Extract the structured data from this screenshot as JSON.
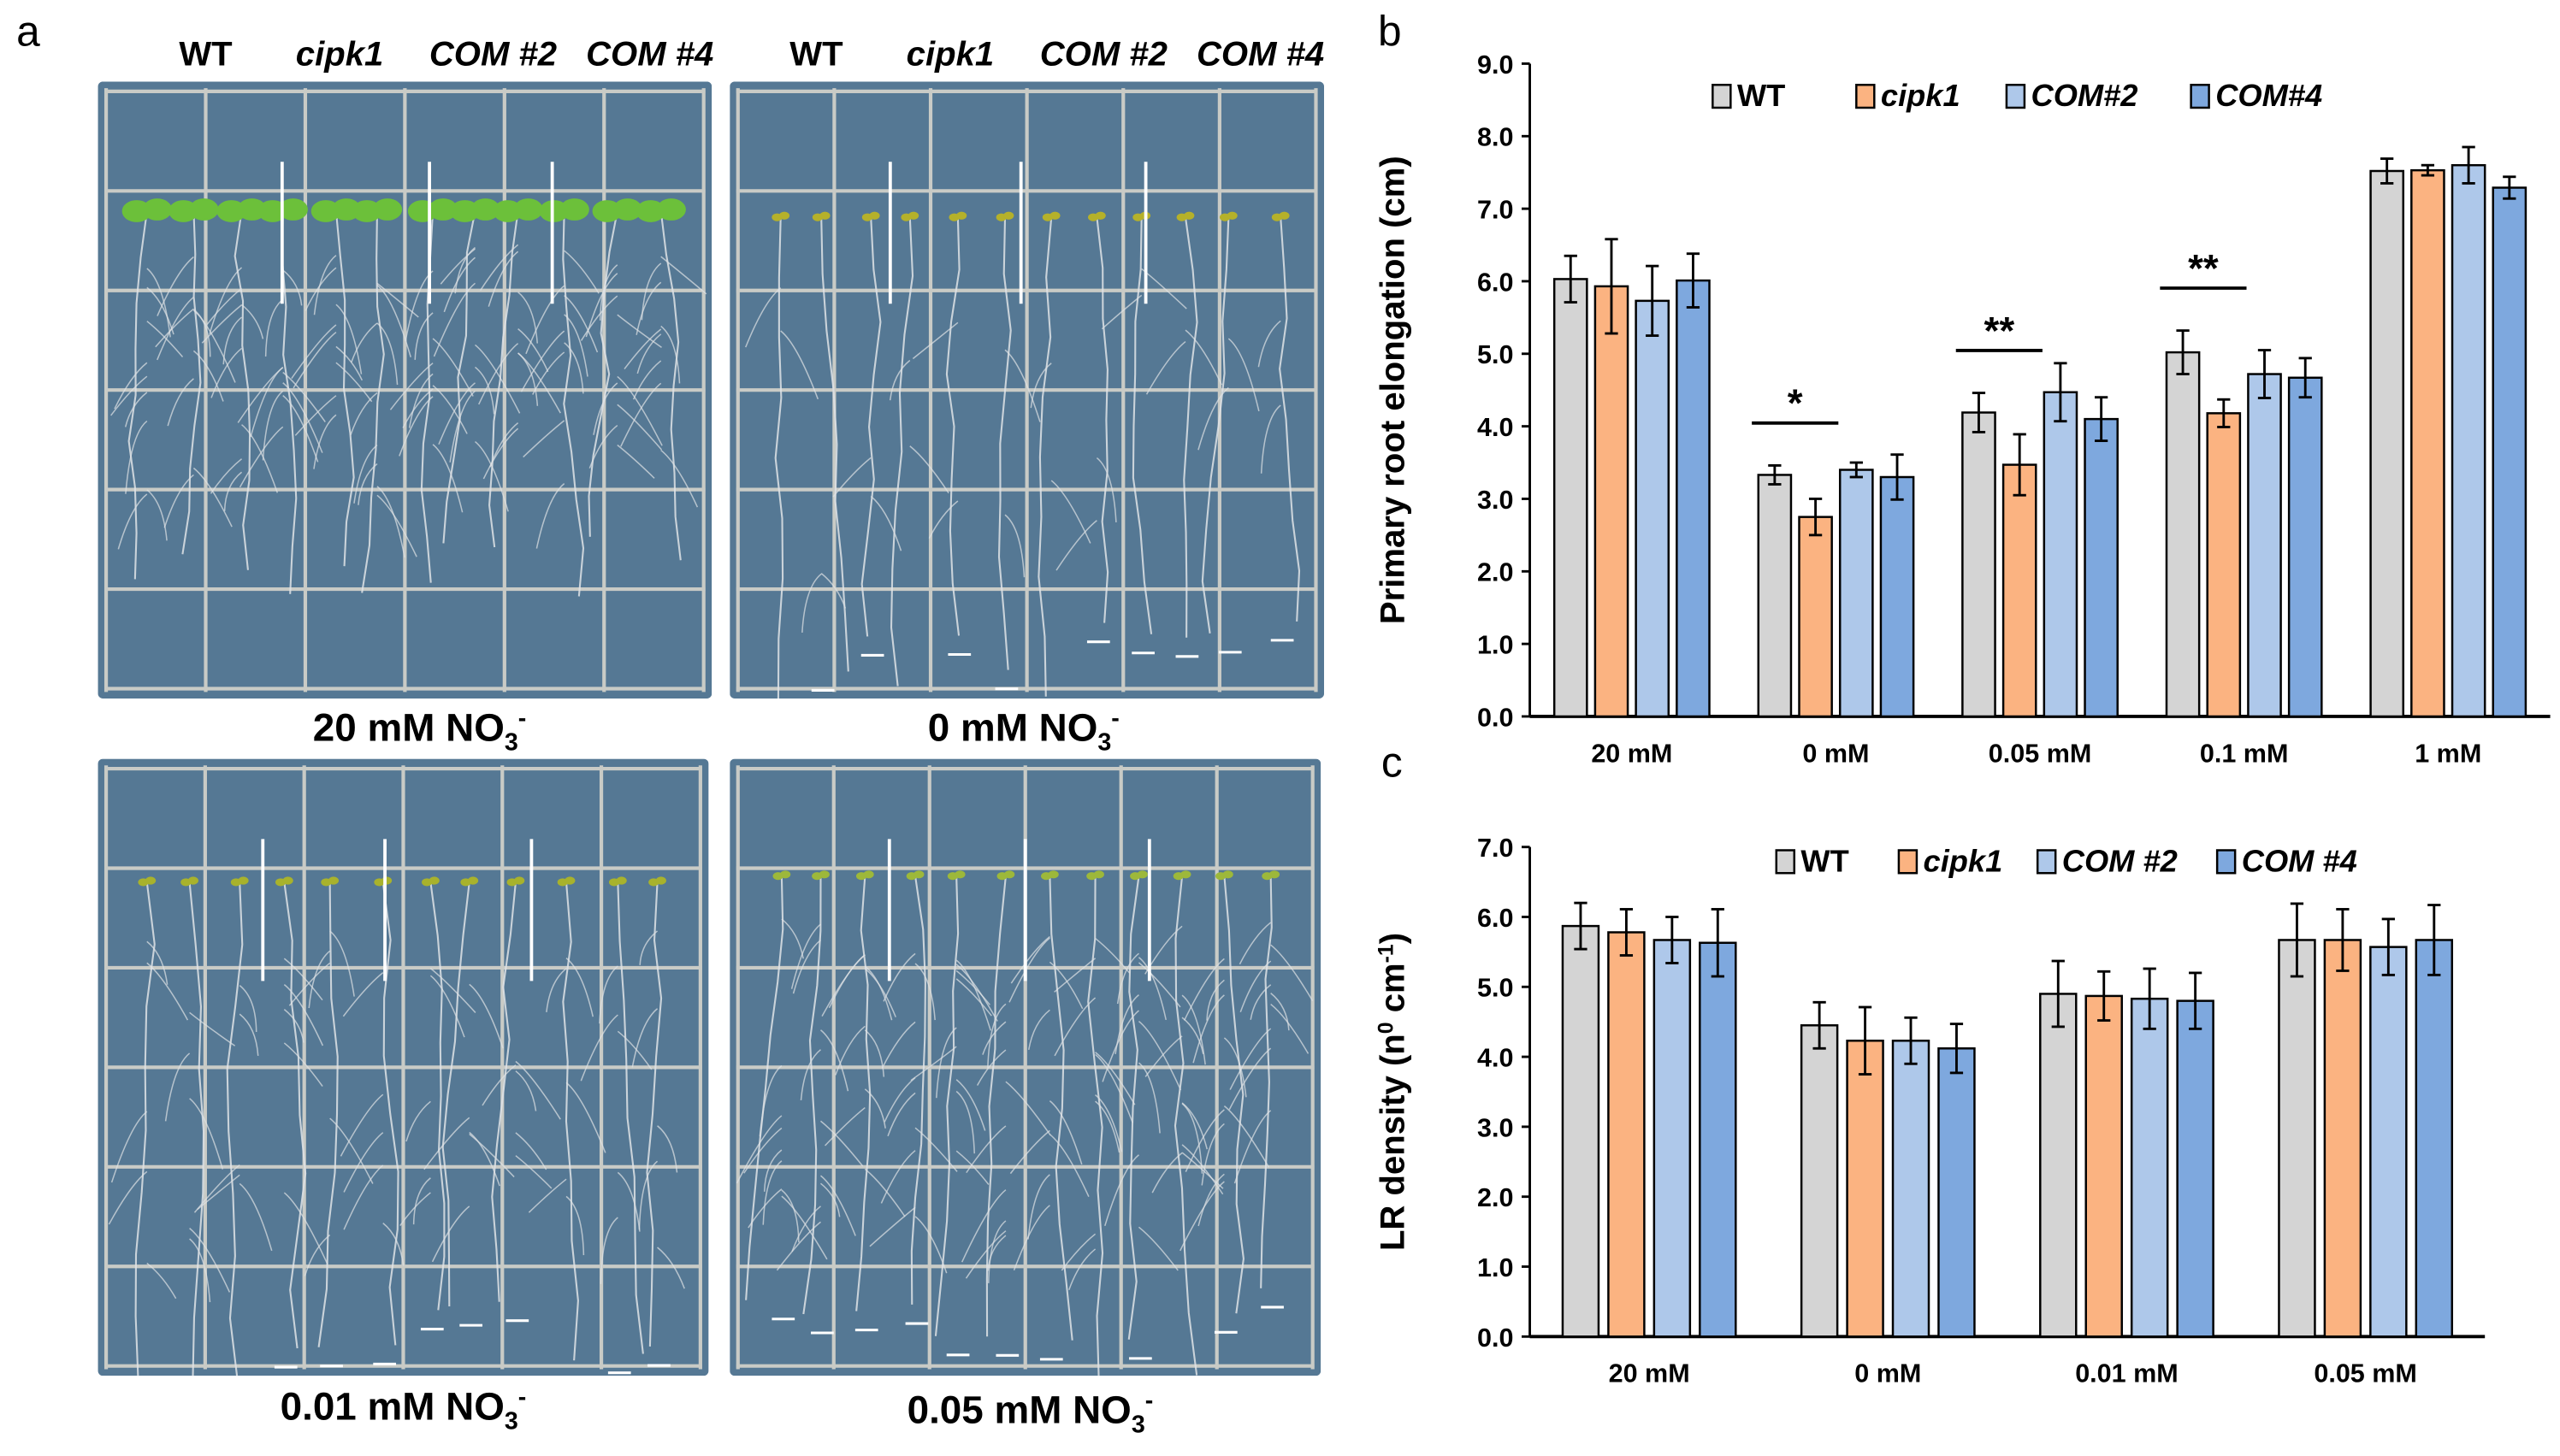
{
  "panel_labels": {
    "a": "a",
    "b": "b",
    "c": "c"
  },
  "plate_headers": [
    "WT",
    "cipk1",
    "COM #2",
    "COM #4"
  ],
  "plates": [
    {
      "caption_main": "20 mM NO",
      "caption_sub": "3",
      "caption_sup": "-",
      "leaf_color": "#6cc03a"
    },
    {
      "caption_main": "0 mM NO",
      "caption_sub": "3",
      "caption_sup": "-",
      "leaf_color": "#b5b12a"
    },
    {
      "caption_main": "0.01 mM NO",
      "caption_sub": "3",
      "caption_sup": "-",
      "leaf_color": "#a8b22c"
    },
    {
      "caption_main": "0.05 mM NO",
      "caption_sub": "3",
      "caption_sup": "-",
      "leaf_color": "#9db83a"
    }
  ],
  "colors": {
    "WT": "#d4d4d4",
    "cipk1": "#fbb381",
    "COM2": "#aec8ea",
    "COM4": "#7ea8de",
    "plate_bg": "#557894",
    "grid": "#c9cbc6"
  },
  "chart_data": [
    {
      "panel": "b",
      "type": "bar",
      "ylabel": "Primary root elongation (cm)",
      "xlabel": "",
      "ylim": [
        0,
        9
      ],
      "yticks": [
        "0.0",
        "1.0",
        "2.0",
        "3.0",
        "4.0",
        "5.0",
        "6.0",
        "7.0",
        "8.0",
        "9.0"
      ],
      "categories": [
        "20 mM",
        "0 mM",
        "0.05 mM",
        "0.1 mM",
        "1 mM"
      ],
      "legend_position": "top",
      "series": [
        {
          "name": "WT",
          "italic": false,
          "values": [
            6.03,
            3.33,
            4.19,
            5.02,
            7.52
          ],
          "errors": [
            0.32,
            0.13,
            0.27,
            0.3,
            0.17
          ]
        },
        {
          "name": "cipk1",
          "italic": true,
          "values": [
            5.93,
            2.75,
            3.47,
            4.18,
            7.53
          ],
          "errors": [
            0.65,
            0.25,
            0.42,
            0.19,
            0.07
          ]
        },
        {
          "name": "COM#2",
          "italic": true,
          "values": [
            5.73,
            3.4,
            4.47,
            4.72,
            7.6
          ],
          "errors": [
            0.48,
            0.1,
            0.4,
            0.33,
            0.25
          ]
        },
        {
          "name": "COM#4",
          "italic": true,
          "values": [
            6.01,
            3.3,
            4.1,
            4.67,
            7.29
          ],
          "errors": [
            0.37,
            0.31,
            0.3,
            0.27,
            0.15
          ]
        }
      ],
      "annotations": [
        {
          "category": "0 mM",
          "text": "*"
        },
        {
          "category": "0.05 mM",
          "text": "**"
        },
        {
          "category": "0.1 mM",
          "text": "**"
        }
      ]
    },
    {
      "panel": "c",
      "type": "bar",
      "ylabel": "LR density (n",
      "ylabel_sup1": "0",
      "ylabel_mid": " cm",
      "ylabel_sup2": "-1",
      "ylabel_end": ")",
      "xlabel": "",
      "ylim": [
        0,
        7
      ],
      "yticks": [
        "0.0",
        "1.0",
        "2.0",
        "3.0",
        "4.0",
        "5.0",
        "6.0",
        "7.0"
      ],
      "categories": [
        "20 mM",
        "0 mM",
        "0.01 mM",
        "0.05 mM"
      ],
      "legend_position": "top",
      "series": [
        {
          "name": "WT",
          "italic": false,
          "values": [
            5.87,
            4.45,
            4.9,
            5.67
          ],
          "errors": [
            0.33,
            0.33,
            0.47,
            0.52
          ]
        },
        {
          "name": "cipk1",
          "italic": true,
          "values": [
            5.78,
            4.23,
            4.87,
            5.67
          ],
          "errors": [
            0.33,
            0.48,
            0.35,
            0.44
          ]
        },
        {
          "name": "COM #2",
          "italic": true,
          "values": [
            5.67,
            4.23,
            4.83,
            5.57
          ],
          "errors": [
            0.33,
            0.33,
            0.43,
            0.4
          ]
        },
        {
          "name": "COM #4",
          "italic": true,
          "values": [
            5.63,
            4.12,
            4.8,
            5.67
          ],
          "errors": [
            0.48,
            0.35,
            0.4,
            0.5
          ]
        }
      ],
      "annotations": []
    }
  ]
}
